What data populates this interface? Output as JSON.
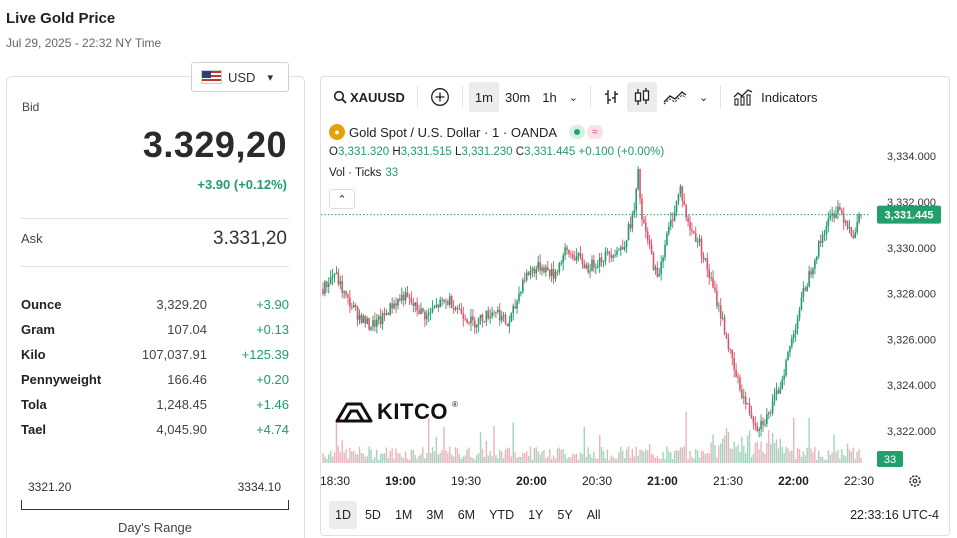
{
  "header": {
    "title": "Live Gold Price",
    "timestamp": "Jul 29, 2025 - 22:32 NY Time"
  },
  "currency": {
    "selected": "USD",
    "flag_icon": "us-flag-icon"
  },
  "quote": {
    "bid_label": "Bid",
    "bid": "3.329,20",
    "bid_change": "+3.90 (+0.12%)",
    "ask_label": "Ask",
    "ask": "3.331,20"
  },
  "units": [
    {
      "name": "Ounce",
      "value": "3,329.20",
      "change": "+3.90"
    },
    {
      "name": "Gram",
      "value": "107.04",
      "change": "+0.13"
    },
    {
      "name": "Kilo",
      "value": "107,037.91",
      "change": "+125.39"
    },
    {
      "name": "Pennyweight",
      "value": "166.46",
      "change": "+0.20"
    },
    {
      "name": "Tola",
      "value": "1,248.45",
      "change": "+1.46"
    },
    {
      "name": "Tael",
      "value": "4,045.90",
      "change": "+4.74"
    }
  ],
  "day_range": {
    "low": "3321.20",
    "high": "3334.10",
    "label": "Day's Range"
  },
  "toolbar": {
    "symbol": "XAUUSD",
    "intervals": [
      "1m",
      "30m",
      "1h"
    ],
    "active_interval": "1m",
    "indicators_label": "Indicators"
  },
  "legend": {
    "title": "Gold Spot / U.S. Dollar · 1 · OANDA",
    "o_label": "O",
    "o": "3,331.320",
    "h_label": "H",
    "h": "3,331.515",
    "l_label": "L",
    "l": "3,331.230",
    "c_label": "C",
    "c": "3,331.445",
    "change": "+0.100 (+0.00%)",
    "vol_label": "Vol · Ticks",
    "vol": "33"
  },
  "logo": {
    "text": "KITCO",
    "reg": "®"
  },
  "range_buttons": [
    "1D",
    "5D",
    "1M",
    "3M",
    "6M",
    "YTD",
    "1Y",
    "5Y",
    "All"
  ],
  "active_range": "1D",
  "clock": "22:33:16 UTC-4",
  "colors": {
    "up": "#1f9d6b",
    "down": "#d9546a",
    "price_tag": "#22a06b"
  },
  "chart_data": {
    "type": "candlestick",
    "y_ticks": [
      "3,334.000",
      "3,332.000",
      "3,330.000",
      "3,328.000",
      "3,326.000",
      "3,324.000",
      "3,322.000"
    ],
    "ylim": [
      3320.6,
      3335.1
    ],
    "x_ticks": [
      "18:30",
      "19:00",
      "19:30",
      "20:00",
      "20:30",
      "21:00",
      "21:30",
      "22:00",
      "22:30"
    ],
    "last_price": "3,331.445",
    "last_volume": "33",
    "close_path": [
      [
        0,
        3328.2
      ],
      [
        6,
        3328.9
      ],
      [
        12,
        3327.8
      ],
      [
        18,
        3327.1
      ],
      [
        24,
        3326.6
      ],
      [
        30,
        3326.8
      ],
      [
        36,
        3327.5
      ],
      [
        42,
        3327.9
      ],
      [
        48,
        3327.4
      ],
      [
        54,
        3327.0
      ],
      [
        60,
        3327.5
      ],
      [
        66,
        3327.7
      ],
      [
        72,
        3327.2
      ],
      [
        78,
        3326.7
      ],
      [
        84,
        3327.0
      ],
      [
        90,
        3327.3
      ],
      [
        96,
        3326.6
      ],
      [
        100,
        3327.4
      ],
      [
        104,
        3328.6
      ],
      [
        108,
        3329.0
      ],
      [
        114,
        3329.2
      ],
      [
        120,
        3328.8
      ],
      [
        126,
        3329.8
      ],
      [
        132,
        3329.6
      ],
      [
        138,
        3329.1
      ],
      [
        144,
        3329.5
      ],
      [
        150,
        3329.8
      ],
      [
        156,
        3330.0
      ],
      [
        162,
        3331.6
      ],
      [
        164,
        3333.2
      ],
      [
        166,
        3331.2
      ],
      [
        170,
        3330.0
      ],
      [
        174,
        3328.6
      ],
      [
        178,
        3330.2
      ],
      [
        182,
        3331.4
      ],
      [
        186,
        3332.6
      ],
      [
        190,
        3331.0
      ],
      [
        196,
        3330.2
      ],
      [
        202,
        3328.5
      ],
      [
        208,
        3326.8
      ],
      [
        214,
        3324.6
      ],
      [
        220,
        3323.2
      ],
      [
        226,
        3322.2
      ],
      [
        232,
        3322.7
      ],
      [
        238,
        3324.0
      ],
      [
        244,
        3326.0
      ],
      [
        250,
        3328.0
      ],
      [
        256,
        3329.6
      ],
      [
        262,
        3331.0
      ],
      [
        268,
        3331.8
      ],
      [
        272,
        3331.2
      ],
      [
        276,
        3330.6
      ],
      [
        280,
        3331.445
      ]
    ]
  }
}
